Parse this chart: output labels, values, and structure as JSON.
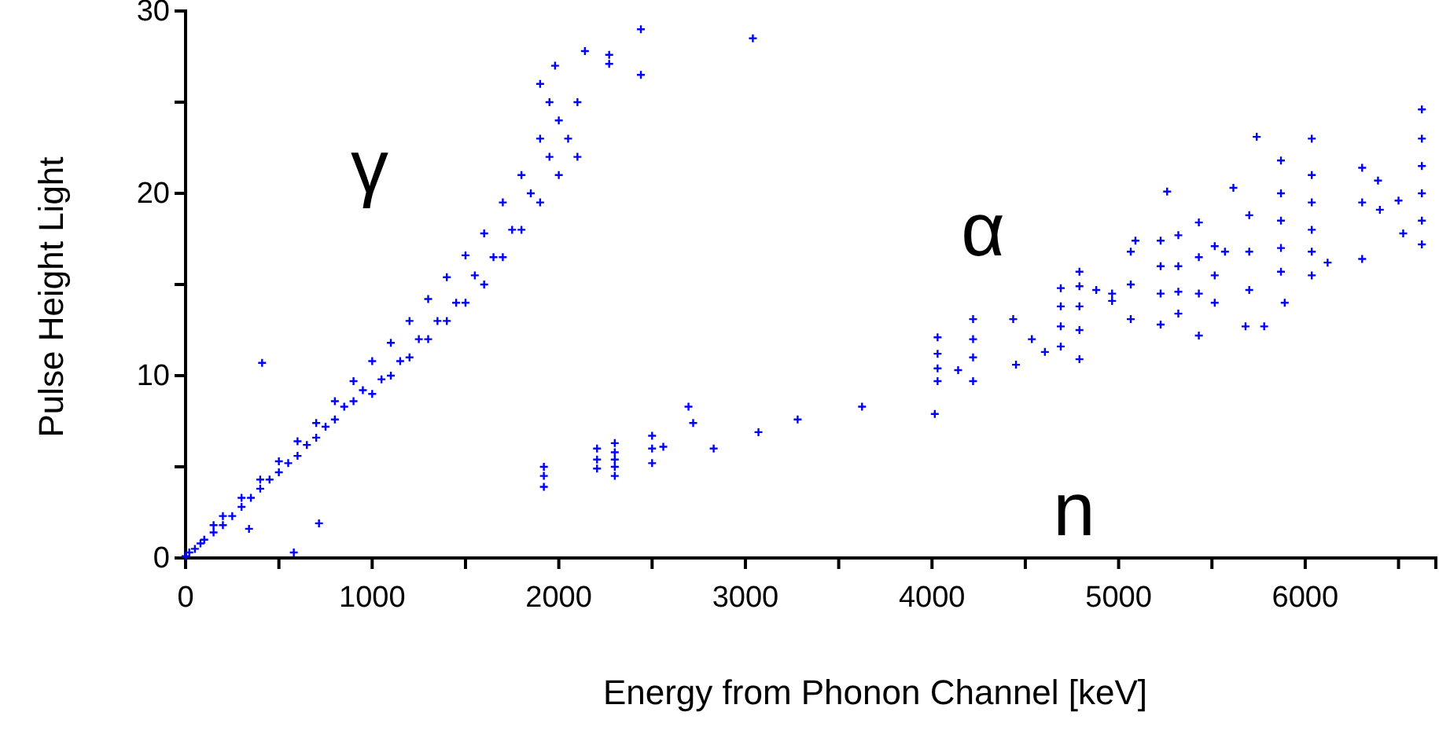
{
  "chart_data": {
    "type": "scatter",
    "xlabel": "Energy from Phonon Channel [keV]",
    "ylabel": "Pulse Height Light",
    "xlim": [
      0,
      6700
    ],
    "ylim": [
      0,
      30
    ],
    "xticks": [
      0,
      {
        "value": 500,
        "label": null
      },
      1000,
      {
        "value": 1500,
        "label": null
      },
      2000,
      {
        "value": 2500,
        "label": null
      },
      3000,
      {
        "value": 3500,
        "label": null
      },
      4000,
      {
        "value": 4500,
        "label": null
      },
      5000,
      {
        "value": 5500,
        "label": null
      },
      6000,
      {
        "value": 6500,
        "label": null
      }
    ],
    "yticks": [
      0,
      {
        "value": 5,
        "label": null
      },
      10,
      {
        "value": 15,
        "label": null
      },
      20,
      {
        "value": 25,
        "label": null
      },
      30
    ],
    "grid": false,
    "marker": "cross",
    "annotations": [
      "γ",
      "α",
      "n"
    ],
    "series": [
      {
        "color": "#0000ff",
        "x": [
          0,
          20,
          50,
          80,
          100,
          150,
          150,
          200,
          200,
          250,
          300,
          300,
          350,
          400,
          400,
          450,
          500,
          500,
          550,
          600,
          600,
          650,
          700,
          700,
          750,
          800,
          800,
          850,
          900,
          900,
          950,
          1000,
          1000,
          1050,
          1100,
          1100,
          1150,
          1200,
          1200,
          1250,
          1300,
          1300,
          1350,
          1400,
          1400,
          1450,
          1500,
          1500,
          1550,
          1600,
          1600,
          1650,
          1700,
          1700,
          1750,
          1800,
          1800,
          1850,
          1900,
          1900,
          1950,
          1950,
          2000,
          2000,
          1980,
          1900,
          2050,
          2100,
          2100,
          2140,
          2270,
          2270,
          2440,
          2440,
          3040,
          410,
          715,
          340,
          580,
          1920,
          1920,
          1920,
          2205,
          2205,
          2205,
          2300,
          2300,
          2300,
          2300,
          2300,
          2500,
          2500,
          2500,
          2560,
          2695,
          2720,
          2830,
          3070,
          3280,
          3625,
          4015,
          4030,
          4030,
          4030,
          4030,
          4220,
          4220,
          4220,
          4220,
          4140,
          4435,
          4450,
          4535,
          4605,
          4690,
          4690,
          4690,
          4690,
          4790,
          4790,
          4790,
          4790,
          4790,
          4880,
          4965,
          4965,
          5065,
          5065,
          5065,
          5090,
          5225,
          5225,
          5225,
          5225,
          5320,
          5320,
          5320,
          5320,
          5260,
          5430,
          5430,
          5430,
          5430,
          5515,
          5515,
          5515,
          5615,
          5570,
          5700,
          5700,
          5700,
          5780,
          5680,
          5870,
          5870,
          5870,
          5870,
          5870,
          5740,
          5890,
          6035,
          6035,
          6035,
          6035,
          6035,
          6035,
          6120,
          6305,
          6305,
          6305,
          6390,
          6400,
          6500,
          6525,
          6625,
          6625,
          6625,
          6625,
          6625,
          6625
        ],
        "values": [
          0.1,
          0.3,
          0.5,
          0.8,
          1.0,
          1.4,
          1.8,
          1.8,
          2.3,
          2.3,
          2.8,
          3.3,
          3.3,
          3.8,
          4.3,
          4.3,
          4.7,
          5.3,
          5.2,
          5.6,
          6.4,
          6.2,
          6.6,
          7.4,
          7.2,
          7.6,
          8.6,
          8.3,
          8.6,
          9.7,
          9.2,
          9.0,
          10.8,
          9.8,
          10.0,
          11.8,
          10.8,
          11.0,
          13.0,
          12.0,
          12.0,
          14.2,
          13.0,
          13.0,
          15.4,
          14.0,
          14.0,
          16.6,
          15.5,
          15.0,
          17.8,
          16.5,
          16.5,
          19.5,
          18.0,
          18.0,
          21.0,
          20.0,
          19.5,
          23.0,
          22.0,
          25.0,
          21.0,
          24.0,
          27.0,
          26.0,
          23.0,
          25.0,
          22.0,
          27.8,
          27.6,
          27.1,
          29.0,
          26.5,
          28.5,
          10.7,
          1.9,
          1.6,
          0.3,
          5.0,
          4.5,
          3.9,
          6.0,
          5.4,
          4.9,
          6.3,
          5.8,
          5.4,
          5.0,
          4.5,
          6.7,
          6.0,
          5.2,
          6.1,
          8.3,
          7.4,
          6.0,
          6.9,
          7.6,
          8.3,
          7.9,
          12.1,
          11.2,
          10.4,
          9.7,
          13.1,
          12.0,
          11.0,
          9.7,
          10.3,
          13.1,
          10.6,
          12.0,
          11.3,
          14.8,
          13.8,
          12.7,
          11.6,
          14.9,
          13.8,
          12.5,
          10.9,
          15.7,
          14.7,
          14.5,
          14.1,
          16.8,
          15.0,
          13.1,
          17.4,
          17.4,
          16.0,
          14.5,
          12.8,
          17.7,
          16.0,
          14.6,
          13.4,
          20.1,
          18.4,
          16.5,
          14.5,
          12.2,
          17.1,
          15.5,
          14.0,
          20.3,
          16.8,
          18.8,
          16.8,
          14.7,
          12.7,
          12.7,
          21.8,
          20.0,
          18.5,
          17.0,
          15.7,
          23.1,
          14.0,
          23.0,
          21.0,
          19.5,
          18.0,
          16.8,
          15.5,
          16.2,
          21.4,
          19.5,
          16.4,
          20.7,
          19.1,
          19.6,
          17.8,
          24.6,
          23.0,
          21.5,
          20.0,
          18.5,
          17.2
        ]
      }
    ]
  }
}
